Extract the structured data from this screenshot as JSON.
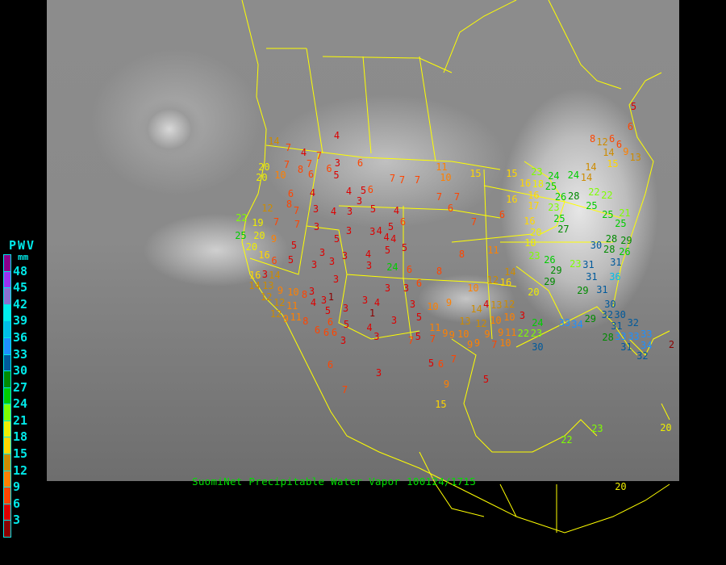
{
  "title": "SuomiNet Precipitable Water Vapor 100124/1715",
  "legend": {
    "title": "PWV",
    "unit": "mm",
    "labels": [
      "48",
      "45",
      "42",
      "39",
      "36",
      "33",
      "30",
      "27",
      "24",
      "21",
      "18",
      "15",
      "12",
      "9",
      "6",
      "3"
    ],
    "colors": [
      "#8b008b",
      "#9a32f0",
      "#8a70d0",
      "#00eded",
      "#00bfe8",
      "#1e90ff",
      "#005a9c",
      "#008b00",
      "#00cd00",
      "#7fff00",
      "#eeee00",
      "#ffd700",
      "#cd8b00",
      "#ff8000",
      "#ff4500",
      "#dd0000",
      "#8b0000"
    ]
  },
  "map_colors": {
    "border": "#ffff00",
    "title": "#00e000",
    "legend_text": "#00e8e8"
  },
  "stations": [
    "4",
    "14",
    "7",
    "4",
    "7",
    "6",
    "3",
    "6",
    "5",
    "7",
    "8",
    "7",
    "6",
    "20",
    "20",
    "10",
    "11",
    "10",
    "7",
    "7",
    "7",
    "4",
    "4",
    "5",
    "6",
    "6",
    "8",
    "3",
    "7",
    "7",
    "6",
    "12",
    "7",
    "3",
    "4",
    "3",
    "5",
    "4",
    "6",
    "22",
    "19",
    "7",
    "7",
    "3",
    "3",
    "3",
    "4",
    "5",
    "4",
    "4",
    "25",
    "20",
    "9",
    "5",
    "20",
    "5",
    "5",
    "5",
    "3",
    "3",
    "4",
    "16",
    "6",
    "5",
    "3",
    "3",
    "3",
    "24",
    "6",
    "8",
    "8",
    "16",
    "3",
    "14",
    "3",
    "6",
    "3",
    "3",
    "14",
    "13",
    "9",
    "10",
    "8",
    "3",
    "4",
    "1",
    "3",
    "12",
    "12",
    "11",
    "3",
    "4",
    "3",
    "10",
    "9",
    "3",
    "1",
    "3",
    "5",
    "5",
    "6",
    "5",
    "4",
    "13",
    "11",
    "9",
    "10",
    "7",
    "5",
    "6",
    "6",
    "6",
    "3",
    "3",
    "9",
    "11",
    "8",
    "12",
    "5",
    "6",
    "8",
    "12",
    "6",
    "6",
    "9",
    "13",
    "14",
    "15",
    "24",
    "14",
    "14",
    "15",
    "15",
    "23",
    "16",
    "18",
    "25",
    "24",
    "22",
    "22",
    "28",
    "26",
    "16",
    "16",
    "17",
    "23",
    "25",
    "25",
    "21",
    "25",
    "27",
    "25",
    "6",
    "16",
    "7",
    "20",
    "18",
    "30",
    "28",
    "28",
    "29",
    "26",
    "11",
    "23",
    "26",
    "23",
    "31",
    "31",
    "29",
    "29",
    "12",
    "16",
    "14",
    "31",
    "36",
    "20",
    "29",
    "31",
    "12",
    "13",
    "4",
    "10",
    "14",
    "30",
    "10",
    "10",
    "3",
    "12",
    "9",
    "9",
    "11",
    "24",
    "29",
    "32",
    "30",
    "33",
    "34",
    "31",
    "32",
    "33",
    "33",
    "33",
    "34",
    "31",
    "32",
    "23",
    "22",
    "28",
    "30",
    "7",
    "10",
    "9",
    "2",
    "6",
    "3",
    "7",
    "15",
    "22",
    "23",
    "20",
    "20",
    "9",
    "5",
    "6",
    "7",
    "5",
    "9",
    "7",
    "9"
  ]
}
